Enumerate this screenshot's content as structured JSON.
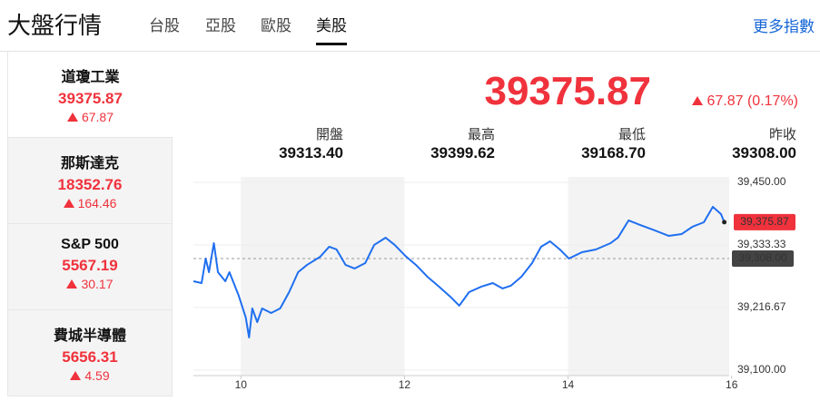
{
  "header": {
    "title": "大盤行情",
    "tabs": [
      "台股",
      "亞股",
      "歐股",
      "美股"
    ],
    "active_tab": 3,
    "more": "更多指數"
  },
  "sidebar": [
    {
      "name": "道瓊工業",
      "value": "39375.87",
      "change": "67.87"
    },
    {
      "name": "那斯達克",
      "value": "18352.76",
      "change": "164.46"
    },
    {
      "name": "S&P 500",
      "value": "5567.19",
      "change": "30.17"
    },
    {
      "name": "費城半導體",
      "value": "5656.31",
      "change": "4.59"
    }
  ],
  "summary": {
    "price": "39375.87",
    "change": "67.87 (0.17%)",
    "stats": [
      {
        "label": "開盤",
        "value": "39313.40"
      },
      {
        "label": "最高",
        "value": "39399.62"
      },
      {
        "label": "最低",
        "value": "39168.70"
      },
      {
        "label": "昨收",
        "value": "39308.00"
      }
    ]
  },
  "chart_data": {
    "type": "line",
    "x": [
      9.42,
      9.52,
      9.57,
      9.61,
      9.67,
      9.72,
      9.81,
      9.86,
      9.97,
      10.06,
      10.1,
      10.14,
      10.2,
      10.26,
      10.37,
      10.48,
      10.59,
      10.7,
      10.81,
      10.97,
      11.08,
      11.17,
      11.28,
      11.39,
      11.52,
      11.63,
      11.77,
      11.88,
      12.01,
      12.14,
      12.28,
      12.41,
      12.56,
      12.67,
      12.79,
      12.94,
      13.08,
      13.2,
      13.3,
      13.43,
      13.56,
      13.67,
      13.78,
      13.9,
      14.01,
      14.17,
      14.34,
      14.52,
      14.61,
      14.74,
      14.88,
      15.06,
      15.23,
      15.39,
      15.52,
      15.66,
      15.77,
      15.87,
      15.91
    ],
    "series": [
      {
        "color": "#1f6ff0",
        "values": [
          39265.7,
          39262.3,
          39308.0,
          39282.6,
          39336.7,
          39282.6,
          39265.7,
          39282.6,
          39240.4,
          39198.1,
          39160.9,
          39215.0,
          39189.6,
          39215.0,
          39206.5,
          39215.0,
          39245.4,
          39282.6,
          39296.2,
          39311.4,
          39330.0,
          39324.9,
          39296.2,
          39289.4,
          39299.5,
          39333.4,
          39346.9,
          39333.4,
          39313.1,
          39296.2,
          39274.2,
          39257.3,
          39237.0,
          39220.1,
          39245.4,
          39255.6,
          39262.3,
          39252.2,
          39257.3,
          39274.2,
          39299.5,
          39330.0,
          39340.1,
          39324.9,
          39308.0,
          39319.8,
          39324.9,
          39336.7,
          39346.9,
          39379.0,
          39370.6,
          39360.4,
          39350.3,
          39353.7,
          39367.2,
          39375.6,
          39404.4,
          39390.9,
          39375.87
        ]
      }
    ],
    "xlim": [
      9.42,
      15.97
    ],
    "xticks": [
      10,
      12,
      14,
      16
    ],
    "ylim": [
      39100,
      39450
    ],
    "yticks": [
      {
        "value": 39100,
        "label": "39,100.00"
      },
      {
        "value": 39216.67,
        "label": "39,216.67"
      },
      {
        "value": 39333.33,
        "label": "39,333.33"
      },
      {
        "value": 39450,
        "label": "39,450.00"
      }
    ],
    "last_label": "39,375.87",
    "prev_close": {
      "value": 39308,
      "label": "39,308.00"
    }
  }
}
